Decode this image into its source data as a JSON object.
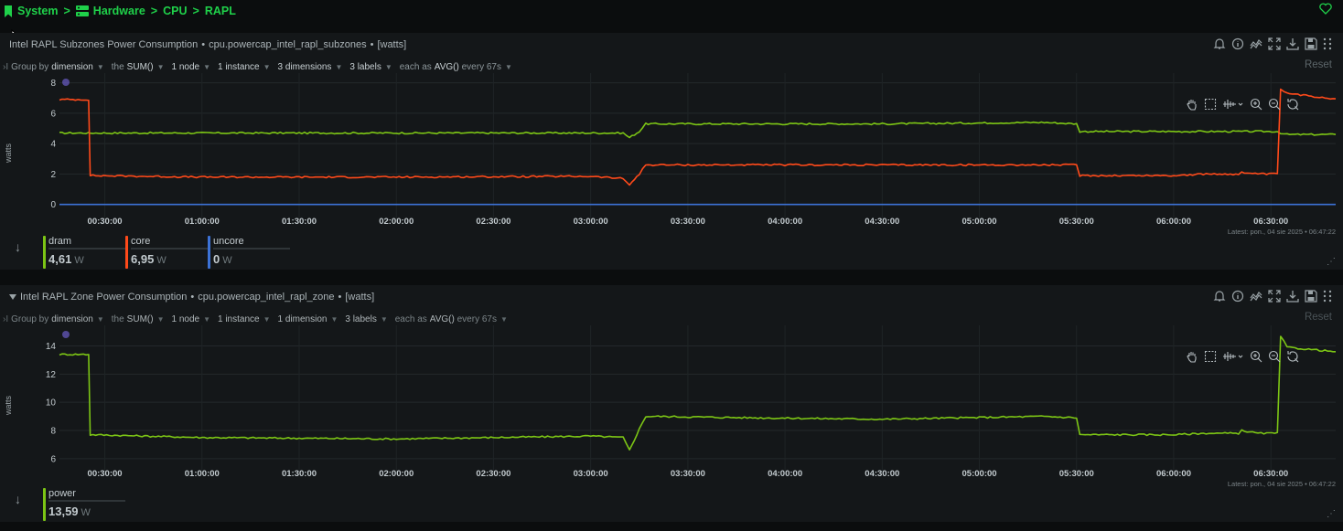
{
  "breadcrumb": {
    "system": "System",
    "hardware": "Hardware",
    "cpu": "CPU",
    "rapl": "RAPL",
    "sep": ">"
  },
  "colors": {
    "accent": "#1fd14a",
    "dram": "#7cc515",
    "core": "#ff4a1a",
    "uncore": "#3c72d6",
    "power": "#7cc515"
  },
  "panels": [
    {
      "title": "Intel RAPL Subzones Power Consumption",
      "context": "cpu.powercap_intel_rapl_subzones",
      "units": "[watts]",
      "filters": {
        "group_by_prefix": "Group by",
        "group_by": "dimension",
        "agg_prefix": "the",
        "agg": "SUM()",
        "nodes": "1 node",
        "instances": "1 instance",
        "dims": "3 dimensions",
        "labels": "3 labels",
        "each_prefix": "each as",
        "each": "AVG()",
        "every": "every 67s"
      },
      "reset": "Reset",
      "ylabel": "watts",
      "latest": "Latest: pon., 04 sie 2025 • 06:47:22",
      "legend": [
        {
          "name": "dram",
          "value": "4,61",
          "unit": "W"
        },
        {
          "name": "core",
          "value": "6,95",
          "unit": "W"
        },
        {
          "name": "uncore",
          "value": "0",
          "unit": "W"
        }
      ]
    },
    {
      "title": "Intel RAPL Zone Power Consumption",
      "context": "cpu.powercap_intel_rapl_zone",
      "units": "[watts]",
      "filters": {
        "group_by_prefix": "Group by",
        "group_by": "dimension",
        "agg_prefix": "the",
        "agg": "SUM()",
        "nodes": "1 node",
        "instances": "1 instance",
        "dims": "1 dimension",
        "labels": "3 labels",
        "each_prefix": "each as",
        "each": "AVG()",
        "every": "every 67s"
      },
      "reset": "Reset",
      "ylabel": "watts",
      "latest": "Latest: pon., 04 sie 2025 • 06:47:22",
      "legend": [
        {
          "name": "power",
          "value": "13,59",
          "unit": "W"
        }
      ]
    }
  ],
  "chart_data": [
    {
      "type": "line",
      "title": "Intel RAPL Subzones Power Consumption",
      "ylabel": "watts",
      "ylim": [
        -0.5,
        8.4
      ],
      "yticks": [
        0,
        2,
        4,
        6,
        8
      ],
      "xticks": [
        "00:30:00",
        "01:00:00",
        "01:30:00",
        "02:00:00",
        "02:30:00",
        "03:00:00",
        "03:30:00",
        "04:00:00",
        "04:30:00",
        "05:00:00",
        "05:30:00",
        "06:00:00",
        "06:30:00"
      ],
      "x_minutes": [
        16,
        25,
        25.5,
        60,
        120,
        180,
        190,
        192,
        195,
        197,
        200,
        230,
        270,
        320,
        330,
        331,
        360,
        370,
        380,
        381,
        386,
        387,
        392,
        393,
        395,
        410
      ],
      "series": [
        {
          "name": "dram",
          "values": [
            4.7,
            4.7,
            4.7,
            4.7,
            4.7,
            4.7,
            4.7,
            4.4,
            4.8,
            5.3,
            5.3,
            5.3,
            5.3,
            5.4,
            5.3,
            4.8,
            4.8,
            4.8,
            4.8,
            4.8,
            4.8,
            4.8,
            4.8,
            4.7,
            4.6,
            4.6
          ]
        },
        {
          "name": "core",
          "values": [
            6.9,
            6.9,
            1.9,
            1.8,
            1.8,
            1.85,
            1.7,
            1.3,
            2.0,
            2.6,
            2.6,
            2.6,
            2.6,
            2.6,
            2.6,
            1.9,
            1.9,
            2.0,
            2.0,
            2.1,
            2.0,
            2.0,
            2.0,
            7.6,
            7.3,
            6.95
          ]
        },
        {
          "name": "uncore",
          "values": [
            0,
            0,
            0,
            0,
            0,
            0,
            0,
            0,
            0,
            0,
            0,
            0,
            0,
            0,
            0,
            0,
            0,
            0,
            0,
            0,
            0,
            0,
            0,
            0,
            0,
            0
          ]
        }
      ]
    },
    {
      "type": "line",
      "title": "Intel RAPL Zone Power Consumption",
      "ylabel": "watts",
      "ylim": [
        5.6,
        15.2
      ],
      "yticks": [
        6,
        8,
        10,
        12,
        14
      ],
      "xticks": [
        "00:30:00",
        "01:00:00",
        "01:30:00",
        "02:00:00",
        "02:30:00",
        "03:00:00",
        "03:30:00",
        "04:00:00",
        "04:30:00",
        "05:00:00",
        "05:30:00",
        "06:00:00",
        "06:30:00"
      ],
      "x_minutes": [
        16,
        25,
        25.5,
        60,
        120,
        180,
        190,
        192,
        195,
        197,
        200,
        230,
        270,
        320,
        330,
        331,
        360,
        370,
        380,
        381,
        386,
        387,
        392,
        393,
        395,
        410
      ],
      "series": [
        {
          "name": "power",
          "values": [
            13.4,
            13.4,
            7.7,
            7.5,
            7.4,
            7.6,
            7.5,
            6.6,
            8.1,
            9.0,
            9.0,
            8.9,
            8.8,
            9.0,
            8.9,
            7.7,
            7.7,
            7.8,
            7.8,
            8.0,
            7.8,
            7.8,
            7.8,
            14.7,
            13.9,
            13.59
          ]
        }
      ]
    }
  ]
}
